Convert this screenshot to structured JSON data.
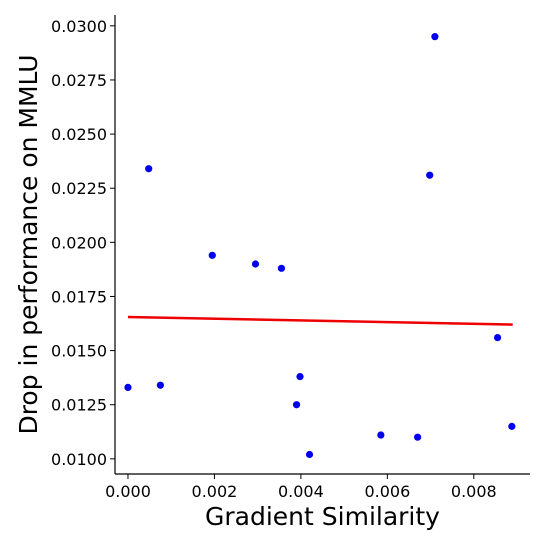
{
  "chart_data": {
    "type": "scatter",
    "xlabel": "Gradient Similarity",
    "ylabel": "Drop in performance on MMLU",
    "xlim": [
      -0.0003,
      0.0093
    ],
    "ylim": [
      0.0093,
      0.0305
    ],
    "x_ticks": [
      "0.000",
      "0.002",
      "0.004",
      "0.006",
      "0.008"
    ],
    "y_ticks": [
      "0.0100",
      "0.0125",
      "0.0150",
      "0.0175",
      "0.0200",
      "0.0225",
      "0.0250",
      "0.0275",
      "0.0300"
    ],
    "grid": false,
    "legend": "none",
    "points": [
      {
        "x": 0.0,
        "y": 0.0133
      },
      {
        "x": 0.00048,
        "y": 0.0234
      },
      {
        "x": 0.00075,
        "y": 0.0134
      },
      {
        "x": 0.00195,
        "y": 0.0194
      },
      {
        "x": 0.00295,
        "y": 0.019
      },
      {
        "x": 0.00355,
        "y": 0.0188
      },
      {
        "x": 0.0039,
        "y": 0.0125
      },
      {
        "x": 0.00398,
        "y": 0.0138
      },
      {
        "x": 0.0042,
        "y": 0.0102
      },
      {
        "x": 0.00585,
        "y": 0.0111
      },
      {
        "x": 0.0067,
        "y": 0.011
      },
      {
        "x": 0.00698,
        "y": 0.0231
      },
      {
        "x": 0.0071,
        "y": 0.0295
      },
      {
        "x": 0.00855,
        "y": 0.0156
      },
      {
        "x": 0.00888,
        "y": 0.0115
      }
    ],
    "trend_line": {
      "x": [
        0.0,
        0.0089
      ],
      "y": [
        0.01655,
        0.0162
      ]
    },
    "colors": {
      "points": "#0000ee",
      "trend_line": "#ee0000",
      "axes": "#000000"
    }
  }
}
